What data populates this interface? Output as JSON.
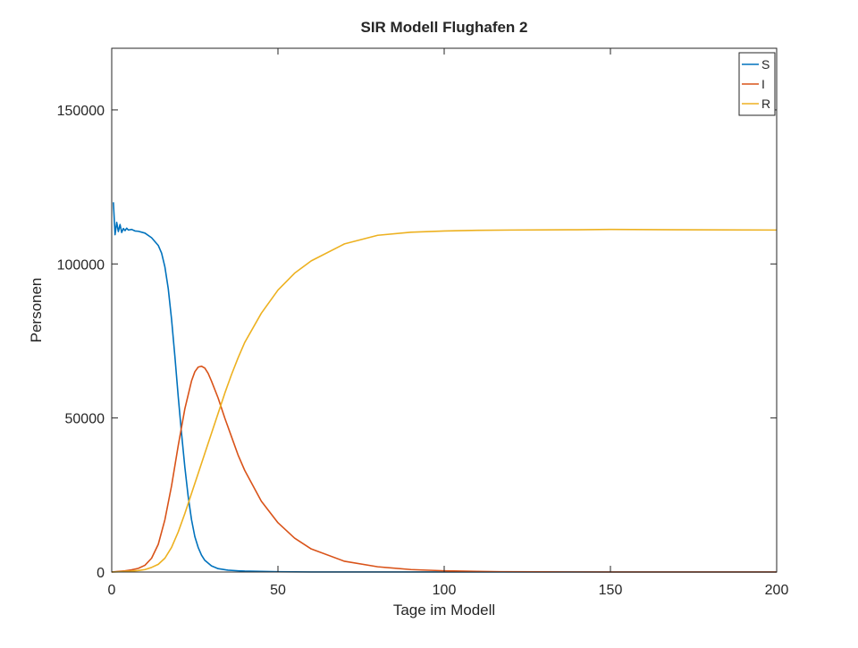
{
  "chart_data": {
    "type": "line",
    "title": "SIR Modell Flughafen 2",
    "xlabel": "Tage im Modell",
    "ylabel": "Personen",
    "xlim": [
      0,
      200
    ],
    "ylim": [
      0,
      170000
    ],
    "xticks": [
      0,
      50,
      100,
      150,
      200
    ],
    "yticks": [
      0,
      50000,
      100000,
      150000
    ],
    "grid": false,
    "legend": {
      "placement": "top-right",
      "entries": [
        "S",
        "I",
        "R"
      ]
    },
    "series": [
      {
        "name": "S",
        "color": "#0072BD",
        "x": [
          0.5,
          1,
          1.5,
          2,
          2.5,
          3,
          3.5,
          4,
          4.5,
          5,
          6,
          7,
          8,
          10,
          12,
          14,
          15,
          16,
          17,
          18,
          19,
          20,
          21,
          22,
          23,
          24,
          25,
          26,
          27,
          28,
          30,
          32,
          35,
          38,
          40,
          45,
          50,
          55,
          60,
          80,
          100,
          150,
          200
        ],
        "y": [
          120000,
          109500,
          113500,
          110500,
          112800,
          110200,
          111500,
          110800,
          111600,
          111000,
          111200,
          110700,
          110600,
          110000,
          108500,
          106000,
          103500,
          99000,
          92000,
          82000,
          70000,
          57000,
          45000,
          34000,
          24500,
          17000,
          11500,
          8000,
          5500,
          3800,
          2000,
          1100,
          600,
          400,
          300,
          200,
          100,
          50,
          30,
          10,
          5,
          2,
          1
        ]
      },
      {
        "name": "I",
        "color": "#D95319",
        "x": [
          0,
          2,
          4,
          6,
          8,
          10,
          12,
          14,
          16,
          18,
          20,
          22,
          24,
          25,
          26,
          27,
          28,
          29,
          30,
          32,
          34,
          36,
          38,
          40,
          45,
          50,
          55,
          60,
          70,
          80,
          90,
          100,
          110,
          117,
          130,
          150,
          200
        ],
        "y": [
          0,
          200,
          400,
          700,
          1200,
          2200,
          4500,
          9000,
          17000,
          28000,
          41000,
          53000,
          62000,
          65000,
          66500,
          66800,
          66200,
          64500,
          62000,
          56500,
          50000,
          44000,
          38000,
          33000,
          23000,
          16000,
          11000,
          7500,
          3500,
          1700,
          800,
          400,
          200,
          100,
          50,
          20,
          5
        ]
      },
      {
        "name": "R",
        "color": "#EDB120",
        "x": [
          0,
          2,
          4,
          6,
          8,
          10,
          12,
          14,
          16,
          18,
          20,
          22,
          24,
          26,
          28,
          30,
          32,
          34,
          36,
          38,
          40,
          45,
          50,
          55,
          60,
          70,
          80,
          90,
          100,
          110,
          120,
          140,
          150,
          170,
          200
        ],
        "y": [
          0,
          100,
          200,
          300,
          500,
          800,
          1500,
          2500,
          4500,
          8000,
          13000,
          19000,
          25500,
          32000,
          38500,
          45000,
          51500,
          58000,
          64000,
          69500,
          74500,
          84000,
          91500,
          97000,
          101000,
          106500,
          109300,
          110300,
          110700,
          110900,
          111000,
          111100,
          111200,
          111100,
          111000
        ]
      }
    ]
  }
}
